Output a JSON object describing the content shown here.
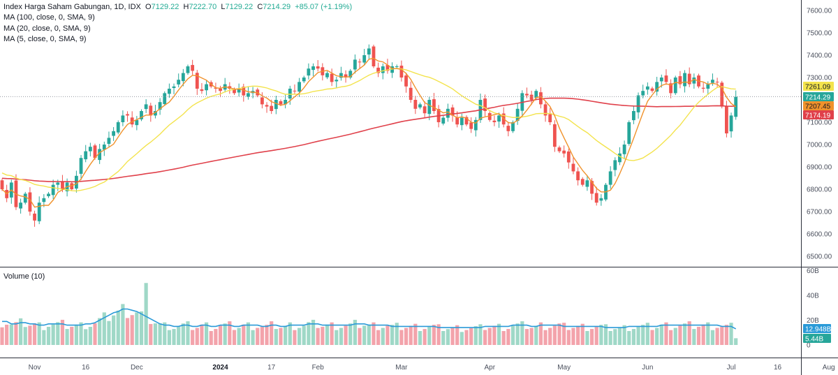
{
  "legend": {
    "title": "Index Harga Saham Gabungan, 1D, IDX",
    "o_label": "O",
    "o_value": "7129.22",
    "h_label": "H",
    "h_value": "7222.70",
    "l_label": "L",
    "l_value": "7129.22",
    "c_label": "C",
    "c_value": "7214.29",
    "change": "+85.07 (+1.19%)",
    "ma100": "MA (100, close, 0, SMA, 9)",
    "ma20": "MA (20, close, 0, SMA, 9)",
    "ma5": "MA (5, close, 0, SMA, 9)"
  },
  "volume_title": "Volume (10)",
  "colors": {
    "up": "#26a69a",
    "down": "#ef5350",
    "vol_up": "#9fd8c7",
    "vol_down": "#f3a3ab",
    "ma100": "#e0404a",
    "ma20": "#f3e34c",
    "ma5": "#f0922b",
    "vol_ma": "#2a9ad8",
    "grid": "#e0e3eb",
    "axis": "#b2b5be"
  },
  "chart_data": [
    {
      "type": "candlestick",
      "ylim": [
        6470,
        7640
      ],
      "y_ticks": [
        "7600.00",
        "7500.00",
        "7400.00",
        "7300.00",
        "7200.00",
        "7100.00",
        "7000.00",
        "6900.00",
        "6800.00",
        "6700.00",
        "6600.00",
        "6500.00"
      ],
      "x_ticks": [
        {
          "i": 7,
          "label": "Nov"
        },
        {
          "i": 18,
          "label": "16"
        },
        {
          "i": 29,
          "label": "Dec"
        },
        {
          "i": 47,
          "label": "2024"
        },
        {
          "i": 58,
          "label": "17"
        },
        {
          "i": 68,
          "label": "Feb"
        },
        {
          "i": 86,
          "label": "Mar"
        },
        {
          "i": 105,
          "label": "Apr"
        },
        {
          "i": 121,
          "label": "May"
        },
        {
          "i": 139,
          "label": "Jun"
        },
        {
          "i": 157,
          "label": "Jul"
        },
        {
          "i": 167,
          "label": "16"
        },
        {
          "i": 178,
          "label": "Aug"
        }
      ],
      "price_badges": [
        {
          "value": 7261.09,
          "label": "7261.09",
          "bg": "#f3e34c",
          "fg": "#131722"
        },
        {
          "value": 7214.29,
          "label": "7214.29",
          "bg": "#26a69a",
          "fg": "#ffffff"
        },
        {
          "value": 7207.45,
          "label": "7207.45",
          "bg": "#f0922b",
          "fg": "#131722"
        },
        {
          "value": 7174.19,
          "label": "7174.19",
          "bg": "#e0404a",
          "fg": "#ffffff"
        }
      ],
      "last_close": 7214.29,
      "close": [
        6800,
        6760,
        6830,
        6720,
        6740,
        6780,
        6700,
        6660,
        6740,
        6760,
        6780,
        6820,
        6830,
        6800,
        6830,
        6800,
        6860,
        6940,
        6970,
        6990,
        6940,
        6980,
        7000,
        7030,
        7060,
        7100,
        7130,
        7130,
        7090,
        7110,
        7150,
        7180,
        7130,
        7150,
        7190,
        7230,
        7250,
        7260,
        7290,
        7320,
        7350,
        7330,
        7250,
        7240,
        7270,
        7260,
        7250,
        7240,
        7270,
        7250,
        7230,
        7250,
        7220,
        7230,
        7240,
        7220,
        7180,
        7170,
        7150,
        7200,
        7180,
        7200,
        7250,
        7240,
        7280,
        7300,
        7340,
        7350,
        7340,
        7310,
        7320,
        7280,
        7290,
        7320,
        7300,
        7330,
        7380,
        7370,
        7400,
        7430,
        7350,
        7320,
        7350,
        7330,
        7350,
        7350,
        7300,
        7260,
        7200,
        7160,
        7180,
        7140,
        7200,
        7150,
        7100,
        7120,
        7160,
        7130,
        7090,
        7120,
        7090,
        7070,
        7110,
        7200,
        7150,
        7110,
        7100,
        7130,
        7090,
        7060,
        7100,
        7160,
        7230,
        7220,
        7200,
        7240,
        7180,
        7130,
        7100,
        6990,
        6970,
        6960,
        6920,
        6880,
        6840,
        6820,
        6840,
        6780,
        6740,
        6760,
        6820,
        6880,
        6930,
        6960,
        7000,
        7100,
        7150,
        7220,
        7240,
        7260,
        7240,
        7280,
        7300,
        7280,
        7230,
        7300,
        7270,
        7320,
        7270,
        7300,
        7260,
        7250,
        7270,
        7290,
        7280,
        7170,
        7050,
        7130,
        7214
      ],
      "vol_ma_billion": [
        19,
        19,
        17,
        17,
        18,
        18,
        17,
        17,
        16,
        16,
        17,
        17,
        17,
        17,
        16,
        16,
        16,
        16,
        17,
        17,
        18,
        20,
        22,
        24,
        26,
        27,
        29,
        29,
        28,
        27,
        25,
        23,
        21,
        19,
        17,
        16,
        16,
        15,
        15,
        16,
        16,
        15,
        15,
        16,
        16,
        15,
        15,
        16,
        16,
        16,
        15,
        15,
        16,
        16,
        16,
        16,
        15,
        15,
        16,
        16,
        15,
        15,
        16,
        16,
        16,
        16,
        17,
        17,
        17,
        16,
        16,
        16,
        16,
        16,
        16,
        16,
        17,
        17,
        17,
        16,
        16,
        16,
        16,
        16,
        15,
        15,
        15,
        15,
        15,
        15,
        15,
        15,
        15,
        15,
        14,
        14,
        14,
        14,
        14,
        14,
        14,
        14,
        14,
        14,
        15,
        15,
        15,
        15,
        15,
        15,
        16,
        16,
        16,
        16,
        15,
        15,
        16,
        16,
        16,
        16,
        16,
        15,
        15,
        15,
        15,
        15,
        15,
        15,
        15,
        15,
        14,
        14,
        14,
        14,
        14,
        15,
        15,
        15,
        15,
        15,
        15,
        15,
        16,
        16,
        16,
        16,
        16,
        16,
        16,
        16,
        16,
        16,
        16,
        16,
        16,
        15,
        15,
        15,
        13
      ],
      "last_volume_billion": 5.44,
      "vol_ma_last": 12.948
    },
    {
      "type": "bar",
      "title": "Volume (10)",
      "ylim": [
        0,
        60
      ],
      "y_ticks": [
        {
          "v": 60,
          "label": "60B"
        },
        {
          "v": 40,
          "label": "40B"
        },
        {
          "v": 20,
          "label": "20B"
        },
        {
          "v": 0,
          "label": "0"
        }
      ],
      "badges": [
        {
          "value": 12.948,
          "label": "12.948B",
          "bg": "#2a9ad8",
          "fg": "#ffffff"
        },
        {
          "value": 5.44,
          "label": "5.44B",
          "bg": "#26a69a",
          "fg": "#ffffff"
        }
      ]
    }
  ]
}
